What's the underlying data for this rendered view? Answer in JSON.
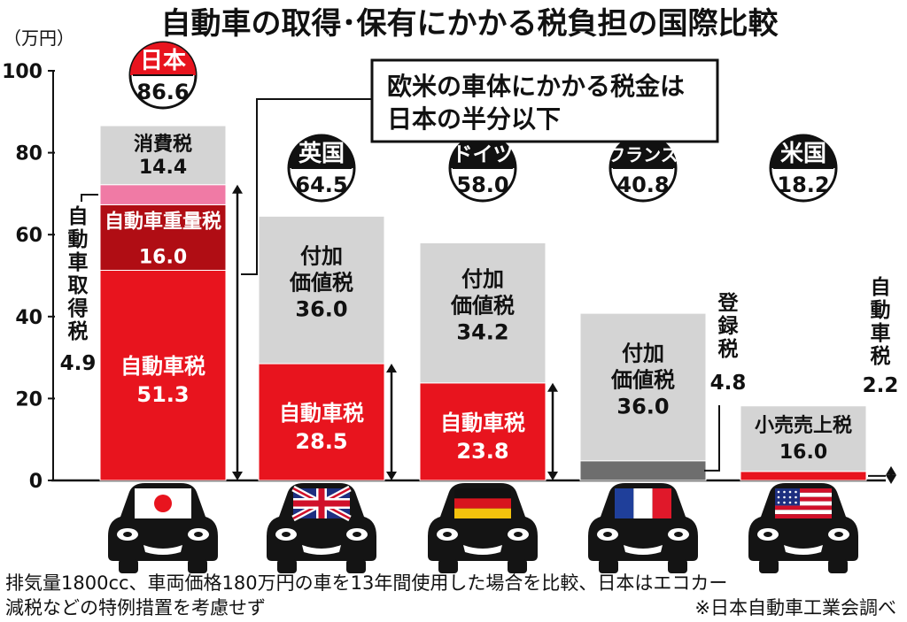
{
  "title": "自動車の取得･保有にかかる税負担の国際比較",
  "unit": "（万円）",
  "callout": [
    "欧米の車体にかかる税金は",
    "日本の半分以下"
  ],
  "footnote": [
    "排気量1800cc、車両価格180万円の車を13年間使用した場合を比較、日本はエコカー",
    "減税などの特例措置を考慮せず"
  ],
  "source": "※日本自動車工業会調べ",
  "chart_data": {
    "type": "bar",
    "stacked": true,
    "ylim": [
      0,
      100
    ],
    "yticks": [
      "0",
      "20",
      "40",
      "60",
      "80",
      "100"
    ],
    "grid": false,
    "bars": [
      {
        "country": "日本",
        "total": "86.6",
        "segments": [
          {
            "name": "自動車税",
            "value": 51.3,
            "label": "51.3",
            "color": "#e8141e"
          },
          {
            "name": "自動車重量税",
            "value": 16.0,
            "label": "16.0",
            "color": "#b00d14"
          },
          {
            "name": "自動車取得税",
            "value": 4.9,
            "label": "4.9",
            "color": "#f07aa5"
          },
          {
            "name": "消費税",
            "value": 14.4,
            "label": "14.4",
            "color": "#d4d4d4"
          }
        ]
      },
      {
        "country": "英国",
        "total": "64.5",
        "segments": [
          {
            "name": "自動車税",
            "value": 28.5,
            "label": "28.5",
            "color": "#e8141e"
          },
          {
            "name": "付加価値税",
            "value": 36.0,
            "label": "36.0",
            "color": "#d4d4d4"
          }
        ]
      },
      {
        "country": "ドイツ",
        "total": "58.0",
        "segments": [
          {
            "name": "自動車税",
            "value": 23.8,
            "label": "23.8",
            "color": "#e8141e"
          },
          {
            "name": "付加価値税",
            "value": 34.2,
            "label": "34.2",
            "color": "#d4d4d4"
          }
        ]
      },
      {
        "country": "フランス",
        "total": "40.8",
        "segments": [
          {
            "name": "登録税",
            "value": 4.8,
            "label": "4.8",
            "color": "#6e6e6e"
          },
          {
            "name": "付加価値税",
            "value": 36.0,
            "label": "36.0",
            "color": "#d4d4d4"
          }
        ]
      },
      {
        "country": "米国",
        "total": "18.2",
        "segments": [
          {
            "name": "自動車税",
            "value": 2.2,
            "label": "2.2",
            "color": "#e8141e"
          },
          {
            "name": "小売売上税",
            "value": 16.0,
            "label": "16.0",
            "color": "#d4d4d4"
          }
        ]
      }
    ]
  }
}
